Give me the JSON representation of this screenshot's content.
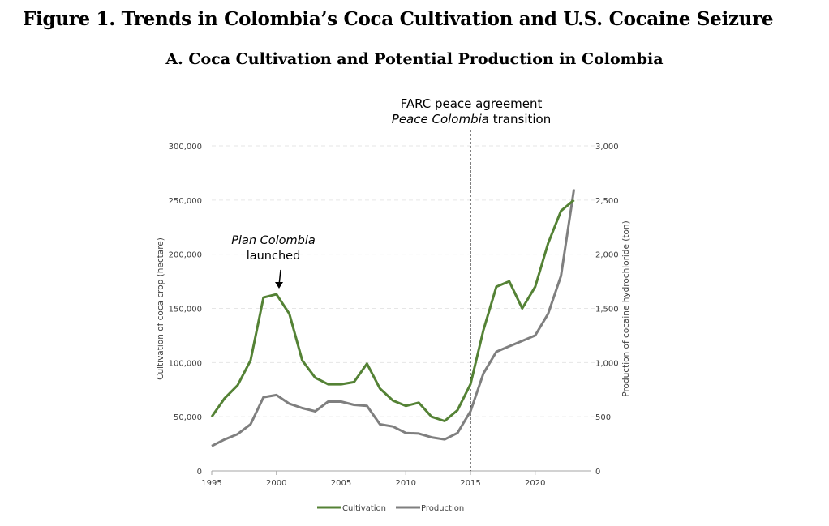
{
  "figure_title": "Figure 1. Trends in Colombia’s Coca Cultivation and U.S. Cocaine Seizure",
  "chart_data": {
    "type": "line",
    "title": "A. Coca Cultivation and Potential Production in Colombia",
    "x": [
      1995,
      1996,
      1997,
      1998,
      1999,
      2000,
      2001,
      2002,
      2003,
      2004,
      2005,
      2006,
      2007,
      2008,
      2009,
      2010,
      2011,
      2012,
      2013,
      2014,
      2015,
      2016,
      2017,
      2018,
      2019,
      2020,
      2021,
      2022,
      2023
    ],
    "xticks": [
      "1995",
      "2000",
      "2005",
      "2010",
      "2015",
      "2020"
    ],
    "xlim": [
      1995,
      2024
    ],
    "ylabel": "Cultivation of coca crop (hectare)",
    "ylim": [
      0,
      300000
    ],
    "yticks": [
      "0",
      "50,000",
      "100,000",
      "150,000",
      "200,000",
      "250,000",
      "300,000"
    ],
    "y2label": "Production of cocaine hydrochloride (ton)",
    "y2lim": [
      0,
      3000
    ],
    "y2ticks": [
      "0",
      "500",
      "1,000",
      "1,500",
      "2,000",
      "2,500",
      "3,000"
    ],
    "grid": true,
    "legend_position": "bottom",
    "series": [
      {
        "name": "Cultivation",
        "axis": "left",
        "color": "#548235",
        "values": [
          50000,
          67000,
          79000,
          102000,
          160000,
          163000,
          145000,
          102000,
          86000,
          80000,
          80000,
          82000,
          99000,
          76000,
          65000,
          60000,
          63000,
          50000,
          46000,
          56000,
          80000,
          130000,
          170000,
          175000,
          150000,
          170000,
          210000,
          240000,
          250000
        ]
      },
      {
        "name": "Production",
        "axis": "right",
        "color": "#7f7f7f",
        "values": [
          230,
          290,
          340,
          430,
          680,
          700,
          620,
          580,
          550,
          640,
          640,
          610,
          600,
          430,
          410,
          350,
          345,
          310,
          290,
          350,
          550,
          900,
          1100,
          1150,
          1200,
          1250,
          1450,
          1800,
          2600
        ]
      }
    ],
    "annotations": {
      "plan_colombia_line1": "Plan Colombia",
      "plan_colombia_line2": "launched",
      "plan_colombia_year": 2000,
      "farc_line1": "FARC peace agreement",
      "farc_line2_italic": "Peace Colombia",
      "farc_line2_rest": " transition",
      "farc_year": 2015
    }
  }
}
